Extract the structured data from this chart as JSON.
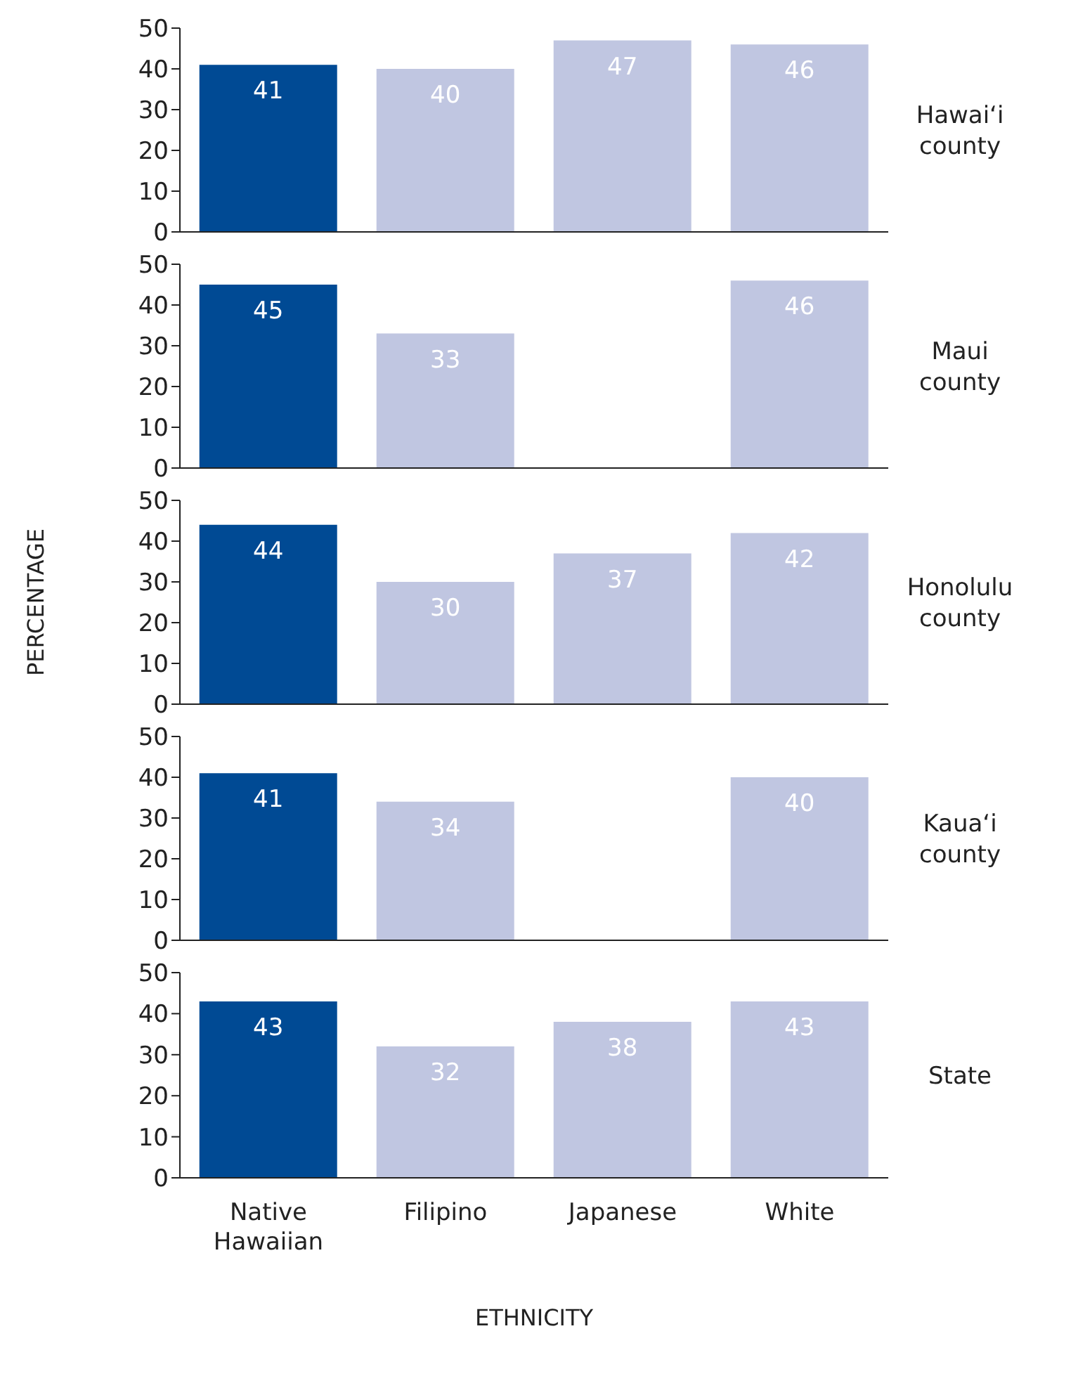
{
  "chart_data": [
    {
      "type": "bar",
      "annotations": [
        "Hawai‘i county"
      ],
      "categories": [
        null,
        null,
        null,
        null
      ],
      "values": [
        41,
        40,
        47,
        46
      ],
      "colors": [
        "#004a94",
        "#c0c6e1",
        "#c0c6e1",
        "#c0c6e1"
      ],
      "ylim": [
        0,
        50
      ],
      "yticks": [
        0,
        10,
        20,
        30,
        40,
        50
      ],
      "data_labels": true,
      "tick_labels": "y"
    },
    {
      "type": "bar",
      "annotations": [
        "Maui county"
      ],
      "categories": [
        null,
        null,
        null,
        null
      ],
      "values": [
        45,
        33,
        null,
        46
      ],
      "colors": [
        "#004a94",
        "#c0c6e1",
        "#c0c6e1",
        "#c0c6e1"
      ],
      "ylim": [
        0,
        50
      ],
      "yticks": [
        0,
        10,
        20,
        30,
        40,
        50
      ],
      "data_labels": true,
      "tick_labels": "y"
    },
    {
      "type": "bar",
      "annotations": [
        "Honolulu county"
      ],
      "ylabel": "PERCENTAGE",
      "categories": [
        null,
        null,
        null,
        null
      ],
      "values": [
        44,
        30,
        37,
        42
      ],
      "colors": [
        "#004a94",
        "#c0c6e1",
        "#c0c6e1",
        "#c0c6e1"
      ],
      "ylim": [
        0,
        50
      ],
      "yticks": [
        0,
        10,
        20,
        30,
        40,
        50
      ],
      "data_labels": true,
      "tick_labels": "y"
    },
    {
      "type": "bar",
      "annotations": [
        "Kaua‘i county"
      ],
      "categories": [
        null,
        null,
        null,
        null
      ],
      "values": [
        41,
        34,
        null,
        40
      ],
      "colors": [
        "#004a94",
        "#c0c6e1",
        "#c0c6e1",
        "#c0c6e1"
      ],
      "ylim": [
        0,
        50
      ],
      "yticks": [
        0,
        10,
        20,
        30,
        40,
        50
      ],
      "data_labels": true,
      "tick_labels": "y"
    },
    {
      "type": "bar",
      "annotations": [
        "State"
      ],
      "xlabel": "ETHNICITY",
      "categories": [
        "Native Hawaiian",
        "Filipino",
        "Japanese",
        "White"
      ],
      "values": [
        43,
        32,
        38,
        43
      ],
      "colors": [
        "#004a94",
        "#c0c6e1",
        "#c0c6e1",
        "#c0c6e1"
      ],
      "ylim": [
        0,
        50
      ],
      "yticks": [
        0,
        10,
        20,
        30,
        40,
        50
      ],
      "data_labels": true
    }
  ]
}
